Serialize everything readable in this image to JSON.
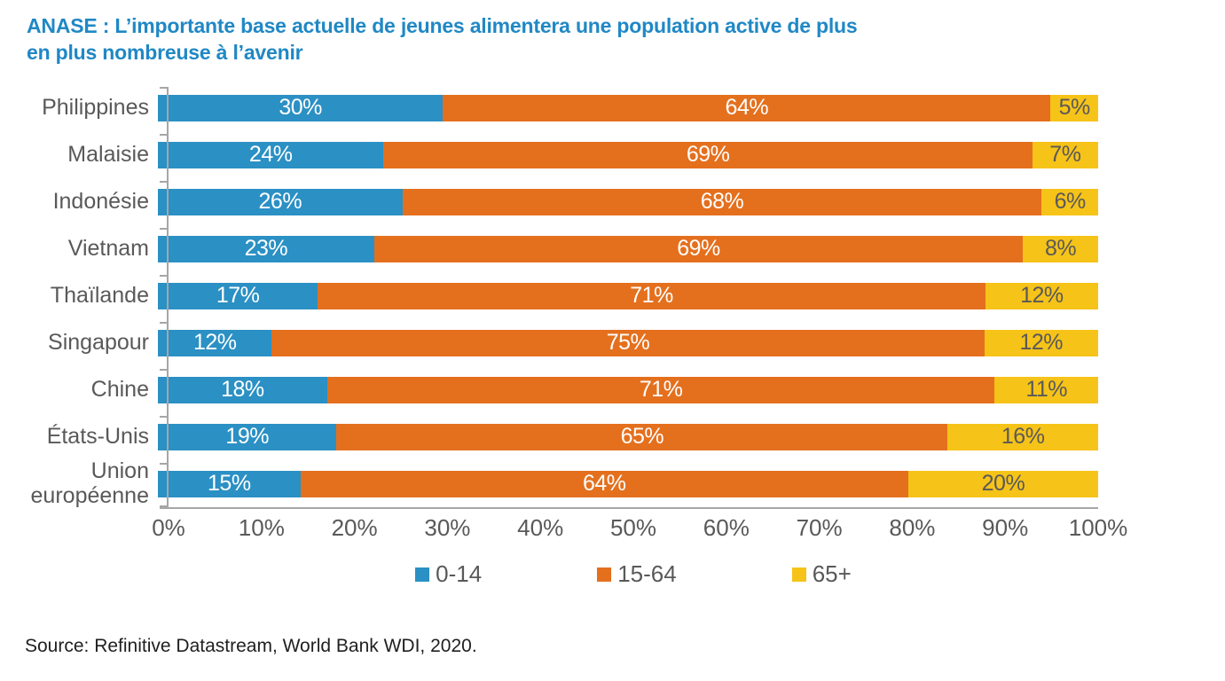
{
  "title": {
    "text": "ANASE : L’importante base actuelle de jeunes alimentera une population active de plus\nen plus nombreuse à l’avenir",
    "color": "#2088C5"
  },
  "chart_data": {
    "type": "bar",
    "orientation": "horizontal",
    "stacked": true,
    "title": "ANASE : L’importante base actuelle de jeunes alimentera une population active de plus en plus nombreuse à l’avenir",
    "categories": [
      "Philippines",
      "Malaisie",
      "Indonésie",
      "Vietnam",
      "Thaïlande",
      "Singapour",
      "Chine",
      "États-Unis",
      "Union européenne"
    ],
    "series": [
      {
        "name": "0-14",
        "color": "#2B90C4",
        "label_color": "#ffffff",
        "values": [
          30,
          24,
          26,
          23,
          17,
          12,
          18,
          19,
          15
        ]
      },
      {
        "name": "15-64",
        "color": "#E4701E",
        "label_color": "#ffffff",
        "values": [
          64,
          69,
          68,
          69,
          71,
          75,
          71,
          65,
          64
        ]
      },
      {
        "name": "65+",
        "color": "#F6C318",
        "label_color": "#595959",
        "values": [
          5,
          7,
          6,
          8,
          12,
          12,
          11,
          16,
          20
        ]
      }
    ],
    "data_label_suffix": "%",
    "x_ticks": [
      "0%",
      "10%",
      "20%",
      "30%",
      "40%",
      "50%",
      "60%",
      "70%",
      "80%",
      "90%",
      "100%"
    ],
    "xlim": [
      0,
      100
    ],
    "grid": false,
    "legend_position": "bottom",
    "axis_color": "#a6a6a6",
    "text_color": "#595959"
  },
  "source": "Source: Refinitive Datastream, World Bank WDI, 2020."
}
